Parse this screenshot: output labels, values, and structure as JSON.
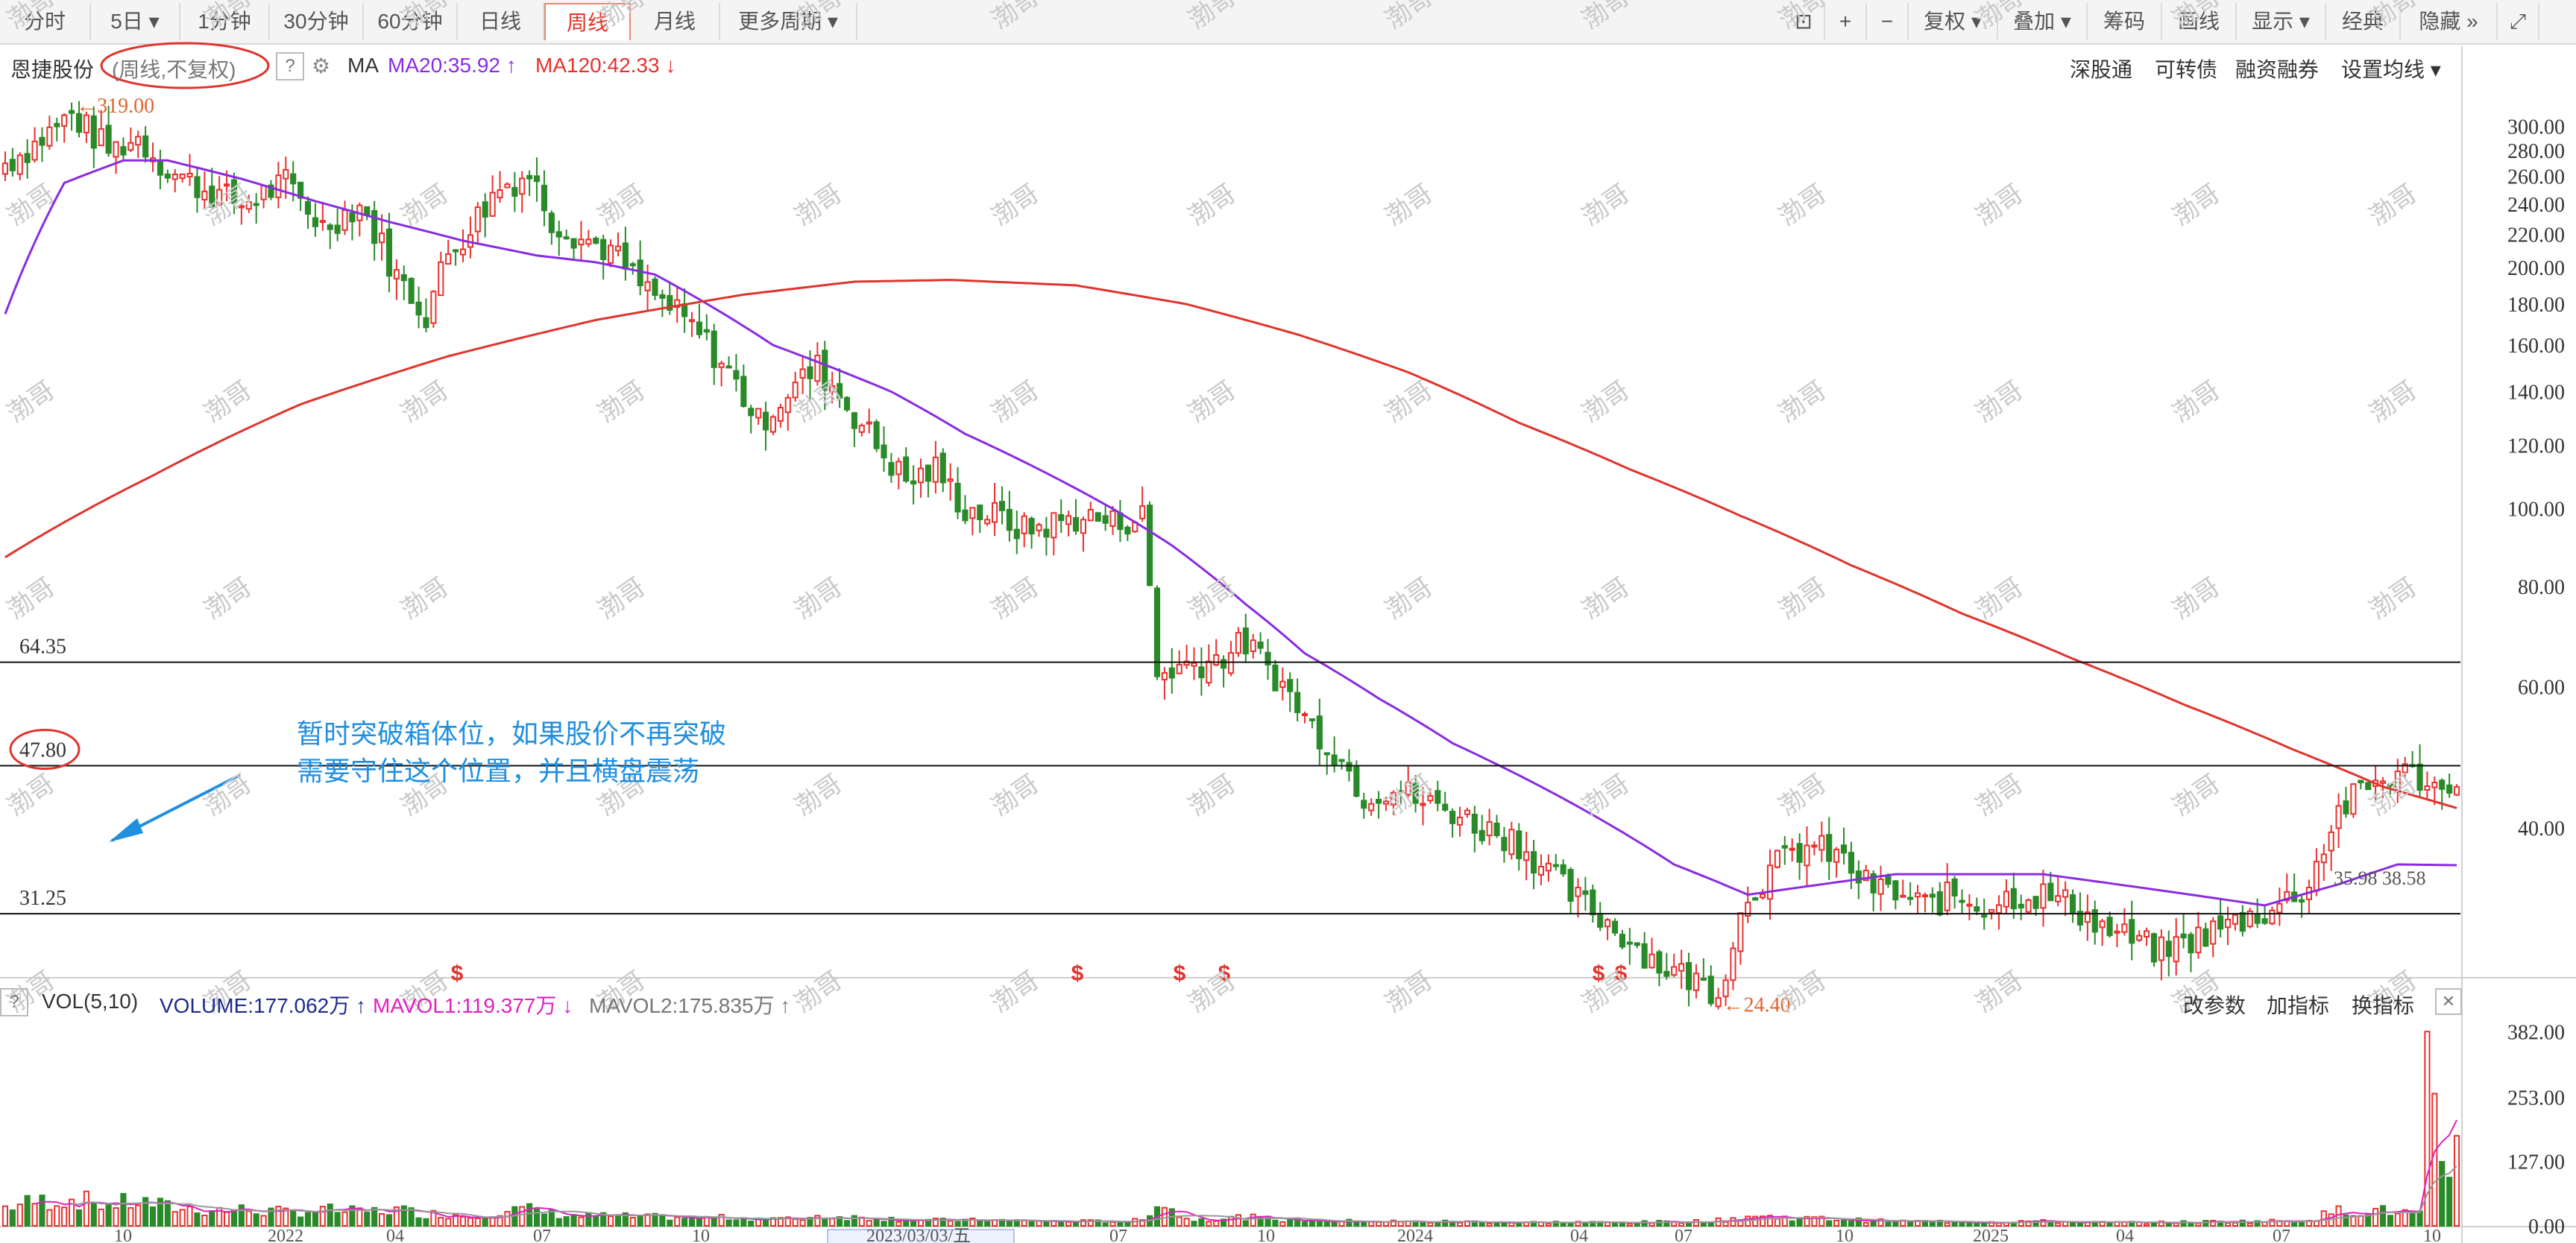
{
  "toolbar": {
    "periods": [
      {
        "label": "分时",
        "active": false
      },
      {
        "label": "5日 ▾",
        "active": false
      },
      {
        "label": "1分钟",
        "active": false
      },
      {
        "label": "30分钟",
        "active": false
      },
      {
        "label": "60分钟",
        "active": false
      },
      {
        "label": "日线",
        "active": false
      },
      {
        "label": "周线",
        "active": true
      },
      {
        "label": "月线",
        "active": false
      },
      {
        "label": "更多周期 ▾",
        "active": false
      }
    ],
    "tools": [
      "⊡",
      "+",
      "−",
      "复权 ▾",
      "叠加 ▾",
      "筹码",
      "画线",
      "显示 ▾",
      "经典",
      "隐藏 »",
      "⤢"
    ]
  },
  "info": {
    "stock_name": "恩捷股份",
    "period_mode": "(周线,不复权)",
    "help": "?",
    "ma_label": "MA",
    "ma20": "MA20:35.92 ↑",
    "ma120": "MA120:42.33 ↓",
    "right_links": [
      "深股通",
      "可转债",
      "融资融券",
      "设置均线 ▾"
    ]
  },
  "vol_info": {
    "help": "?",
    "label": "VOL(5,10)",
    "volume": "VOLUME:177.062万 ↑",
    "mavol1": "MAVOL1:119.377万 ↓",
    "mavol2": "MAVOL2:175.835万 ↑",
    "right_links": [
      "改参数",
      "加指标",
      "换指标",
      "✕"
    ]
  },
  "annotation": {
    "line1": "暂时突破箱体位，如果股价不再突破",
    "line2": "需要守住这个位置，并且横盘震荡"
  },
  "colors": {
    "up": "#e8312f",
    "down": "#2a8a2a",
    "ma20": "#8a2be2",
    "ma120": "#e0342c",
    "annotation": "#1f8fe0",
    "marker": "#e0342c"
  },
  "watermark": "渤哥",
  "chart_data": {
    "type": "candlestick",
    "price_axis": {
      "ylim": [
        26,
        335
      ],
      "ticks": [
        "300.00",
        "280.00",
        "260.00",
        "240.00",
        "220.00",
        "200.00",
        "180.00",
        "160.00",
        "140.00",
        "120.00",
        "100.00",
        "80.00",
        "60.00",
        "40.00"
      ],
      "tick_values": [
        300,
        280,
        260,
        240,
        220,
        200,
        180,
        160,
        140,
        120,
        100,
        80,
        60,
        40
      ]
    },
    "volume_axis": {
      "ylim": [
        0,
        400
      ],
      "ticks": [
        "382.00",
        "253.00",
        "127.00",
        "0.00"
      ],
      "tick_values": [
        382,
        253,
        127,
        0
      ]
    },
    "x_axis_labels": [
      "10",
      "2022",
      "04",
      "07",
      "10",
      "202",
      "2023/03/03/五",
      "07",
      "10",
      "2024",
      "04",
      "07",
      "10",
      "2025",
      "04",
      "07",
      "10"
    ],
    "highlighted_label": "2023/03/03/五",
    "high_label": "319.00",
    "low_label": "24.40",
    "high_value": 319,
    "low_value": 24.4,
    "levels": [
      {
        "value": 64.35,
        "label": "64.35",
        "circled": false
      },
      {
        "value": 47.8,
        "label": "47.80",
        "circled": true
      },
      {
        "value": 31.25,
        "label": "31.25",
        "circled": false
      }
    ],
    "ma_end_label": "35.98 38.58",
    "markers": [
      "$",
      "$",
      "$",
      "$",
      "$",
      "$"
    ],
    "anchors": [
      [
        0,
        270,
        35
      ],
      [
        4,
        285,
        45
      ],
      [
        9,
        310,
        50
      ],
      [
        14,
        280,
        40
      ],
      [
        18,
        290,
        45
      ],
      [
        22,
        265,
        35
      ],
      [
        27,
        250,
        30
      ],
      [
        32,
        240,
        30
      ],
      [
        38,
        255,
        25
      ],
      [
        43,
        225,
        30
      ],
      [
        48,
        240,
        25
      ],
      [
        53,
        195,
        30
      ],
      [
        57,
        175,
        22
      ],
      [
        60,
        208,
        22
      ],
      [
        63,
        225,
        18
      ],
      [
        67,
        252,
        28
      ],
      [
        71,
        262,
        30
      ],
      [
        74,
        230,
        22
      ],
      [
        78,
        218,
        18
      ],
      [
        82,
        210,
        18
      ],
      [
        86,
        190,
        16
      ],
      [
        90,
        178,
        16
      ],
      [
        94,
        165,
        14
      ],
      [
        98,
        148,
        15
      ],
      [
        102,
        128,
        14
      ],
      [
        106,
        140,
        12
      ],
      [
        110,
        150,
        18
      ],
      [
        114,
        135,
        16
      ],
      [
        118,
        120,
        14
      ],
      [
        122,
        108,
        12
      ],
      [
        126,
        112,
        10
      ],
      [
        130,
        100,
        10
      ],
      [
        134,
        98,
        10
      ],
      [
        138,
        94,
        9
      ],
      [
        142,
        96,
        8
      ],
      [
        146,
        98,
        8
      ],
      [
        150,
        96,
        8
      ],
      [
        154,
        98,
        10
      ],
      [
        156,
        62,
        50
      ],
      [
        160,
        64,
        12
      ],
      [
        164,
        65,
        14
      ],
      [
        168,
        68,
        16
      ],
      [
        172,
        62,
        12
      ],
      [
        176,
        55,
        10
      ],
      [
        180,
        50,
        8
      ],
      [
        184,
        44,
        9
      ],
      [
        188,
        45,
        8
      ],
      [
        192,
        43,
        7
      ],
      [
        196,
        42,
        8
      ],
      [
        200,
        40,
        7
      ],
      [
        204,
        39,
        7
      ],
      [
        208,
        36,
        6
      ],
      [
        212,
        33,
        7
      ],
      [
        216,
        31,
        6
      ],
      [
        220,
        29,
        6
      ],
      [
        224,
        27,
        7
      ],
      [
        228,
        26,
        8
      ],
      [
        232,
        25,
        10
      ],
      [
        236,
        33,
        18
      ],
      [
        240,
        36,
        16
      ],
      [
        244,
        38,
        14
      ],
      [
        248,
        37,
        12
      ],
      [
        252,
        34,
        10
      ],
      [
        256,
        33,
        8
      ],
      [
        260,
        32,
        8
      ],
      [
        264,
        33,
        8
      ],
      [
        268,
        32,
        7
      ],
      [
        272,
        33,
        9
      ],
      [
        276,
        33,
        8
      ],
      [
        280,
        32,
        7
      ],
      [
        284,
        30,
        6
      ],
      [
        288,
        29,
        6
      ],
      [
        292,
        28,
        6
      ],
      [
        296,
        29,
        7
      ],
      [
        300,
        30,
        8
      ],
      [
        304,
        31,
        8
      ],
      [
        308,
        32,
        9
      ],
      [
        312,
        34,
        12
      ],
      [
        316,
        42,
        28
      ],
      [
        320,
        45,
        30
      ],
      [
        324,
        47,
        25
      ],
      [
        328,
        46,
        22
      ],
      [
        330,
        44,
        18
      ],
      [
        332,
        47,
        26
      ]
    ],
    "ma20": [
      [
        0,
        175
      ],
      [
        8,
        255
      ],
      [
        16,
        272
      ],
      [
        22,
        272
      ],
      [
        32,
        258
      ],
      [
        42,
        242
      ],
      [
        52,
        228
      ],
      [
        62,
        216
      ],
      [
        72,
        207
      ],
      [
        80,
        203
      ],
      [
        88,
        196
      ],
      [
        96,
        178
      ],
      [
        104,
        160
      ],
      [
        112,
        150
      ],
      [
        120,
        140
      ],
      [
        130,
        124
      ],
      [
        140,
        112
      ],
      [
        150,
        100
      ],
      [
        158,
        90
      ],
      [
        168,
        76
      ],
      [
        176,
        66
      ],
      [
        186,
        58
      ],
      [
        196,
        51
      ],
      [
        206,
        46
      ],
      [
        216,
        41
      ],
      [
        226,
        36
      ],
      [
        236,
        33
      ],
      [
        246,
        34
      ],
      [
        256,
        35
      ],
      [
        266,
        35
      ],
      [
        276,
        35
      ],
      [
        286,
        34
      ],
      [
        296,
        33
      ],
      [
        306,
        32
      ],
      [
        316,
        34
      ],
      [
        324,
        36
      ],
      [
        332,
        35.92
      ]
    ],
    "ma120": [
      [
        0,
        87
      ],
      [
        20,
        110
      ],
      [
        40,
        135
      ],
      [
        60,
        155
      ],
      [
        80,
        172
      ],
      [
        100,
        185
      ],
      [
        115,
        192
      ],
      [
        128,
        193
      ],
      [
        145,
        190
      ],
      [
        160,
        180
      ],
      [
        175,
        165
      ],
      [
        190,
        148
      ],
      [
        205,
        128
      ],
      [
        220,
        112
      ],
      [
        235,
        98
      ],
      [
        250,
        85
      ],
      [
        265,
        74
      ],
      [
        280,
        65
      ],
      [
        295,
        57
      ],
      [
        310,
        50
      ],
      [
        322,
        45
      ],
      [
        332,
        42.33
      ]
    ]
  }
}
